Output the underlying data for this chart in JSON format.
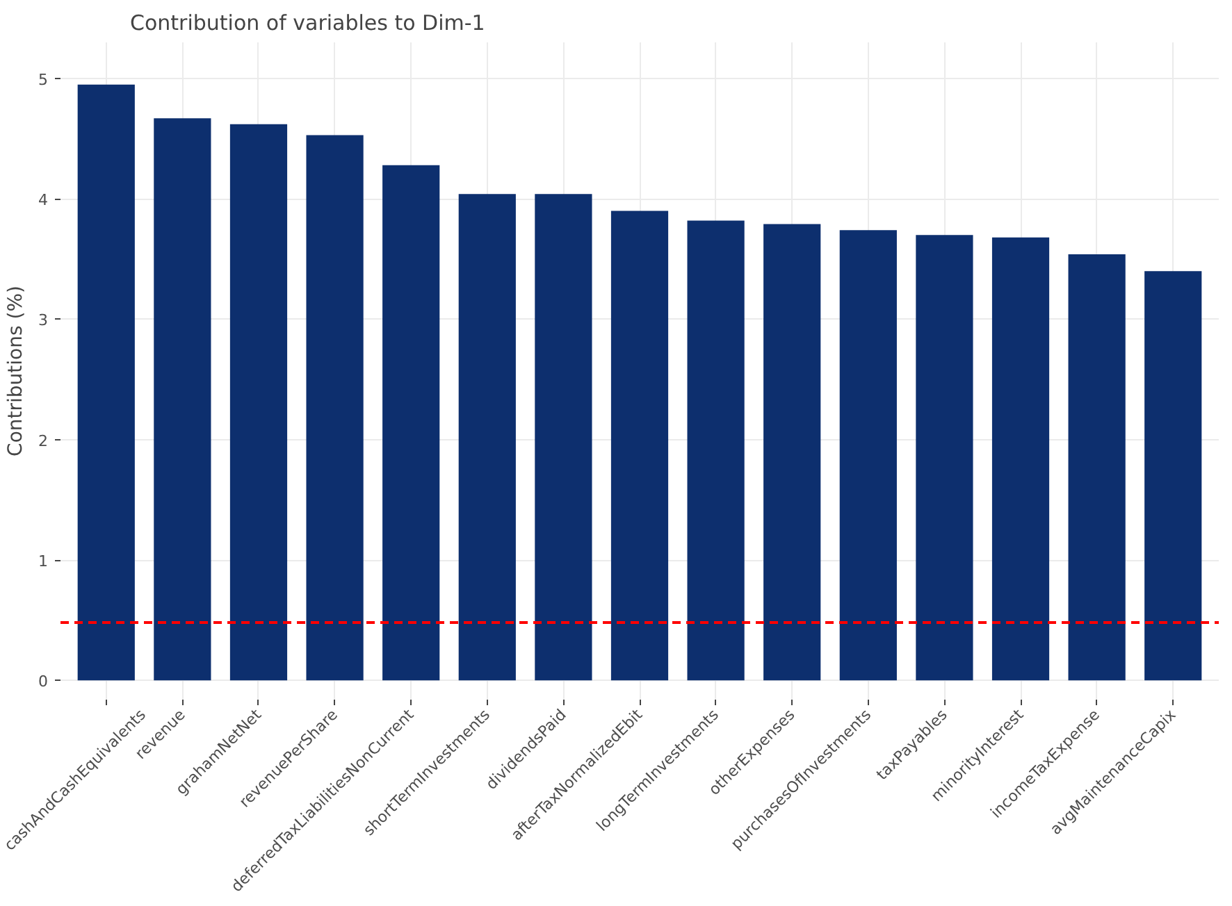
{
  "chart_data": {
    "type": "bar",
    "title": "Contribution of variables to Dim-1",
    "ylabel": "Contributions (%)",
    "categories": [
      "cashAndCashEquivalents",
      "revenue",
      "grahamNetNet",
      "revenuePerShare",
      "deferredTaxLiabilitiesNonCurrent",
      "shortTermInvestments",
      "dividendsPaid",
      "afterTaxNormalizedEbit",
      "longTermInvestments",
      "otherExpenses",
      "purchasesOfInvestments",
      "taxPayables",
      "minorityInterest",
      "incomeTaxExpense",
      "avgMaintenanceCapix"
    ],
    "values": [
      4.95,
      4.67,
      4.62,
      4.53,
      4.28,
      4.04,
      4.04,
      3.9,
      3.82,
      3.79,
      3.74,
      3.7,
      3.68,
      3.54,
      3.4
    ],
    "color": "#0d2f6e",
    "ylim": [
      -0.16,
      5.3
    ],
    "yticks": [
      0,
      1,
      2,
      3,
      4,
      5
    ],
    "grid": true,
    "ref_lines": [
      {
        "axis": "y",
        "value": 0.48,
        "label": null,
        "color": "#ff0000",
        "line_style": "dashed"
      }
    ]
  }
}
